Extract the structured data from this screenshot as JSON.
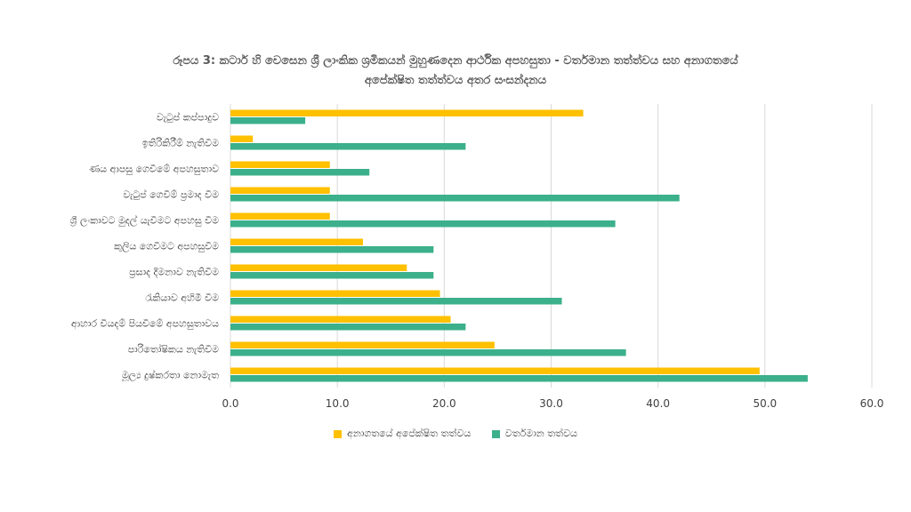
{
  "chart_data": {
    "type": "bar",
    "orientation": "horizontal",
    "title": "රූපය 3: කටාර් හි වෙසෙන ශ්‍රී ලාංකික ශ්‍රමිකයන් මුහුණදෙන ආර්ථික අපහසුතා - වර්තමාන තත්ත්වය සහ අනාගතයේ අපේක්ෂිත තත්ත්වය අතර සංසන්දනය",
    "title_lines": [
      "රූපය 3: කටාර් හි වෙසෙන ශ්‍රී ලාංකික ශ්‍රමිකයන් මුහුණදෙන ආර්ථික අපහසුතා - වර්තමාන තත්ත්වය සහ අනාගතයේ",
      "අපේක්ෂිත තත්ත්වය අතර සංසන්දනය"
    ],
    "categories": [
      "වැටුප් කප්පාදුව",
      "ඉතිරිකිරීම් නැතිවීම",
      "ණය ආපසු ගෙවීමේ අපහසුතාව",
      "වැටුප් ගෙවීම් ප්‍රමාද වීම",
      "ශ්‍රී ලංකාවට මුදල් යැවීමට අපහසු වීම",
      "කුලිය ගෙවීමට අපහසුවීම",
      "ප්‍රසාද දීමනාව නැතිවීම",
      "රැකියාව අහිමි වීම",
      "ආහාර වියදම් පියවීමේ අපහසුතාවය",
      "පාරිතෝෂිකය නැතිවීම",
      "මූල්‍ය දුෂ්කරතා නොමැත"
    ],
    "series": [
      {
        "name": "අනාගතයේ අපේක්ෂිත තත්වය",
        "color": "#FFC000",
        "values": [
          33.0,
          2.1,
          9.3,
          9.3,
          9.3,
          12.4,
          16.5,
          19.6,
          20.6,
          24.7,
          49.5
        ]
      },
      {
        "name": "වර්තමාන තත්වය",
        "color": "#3BB08A",
        "values": [
          7.0,
          22.0,
          13.0,
          42.0,
          36.0,
          19.0,
          19.0,
          31.0,
          22.0,
          37.0,
          54.0
        ]
      }
    ],
    "xlim": [
      0,
      60
    ],
    "xticks": [
      "0.0",
      "10.0",
      "20.0",
      "30.0",
      "40.0",
      "50.0",
      "60.0"
    ],
    "grid": true,
    "legend_position": "bottom"
  }
}
